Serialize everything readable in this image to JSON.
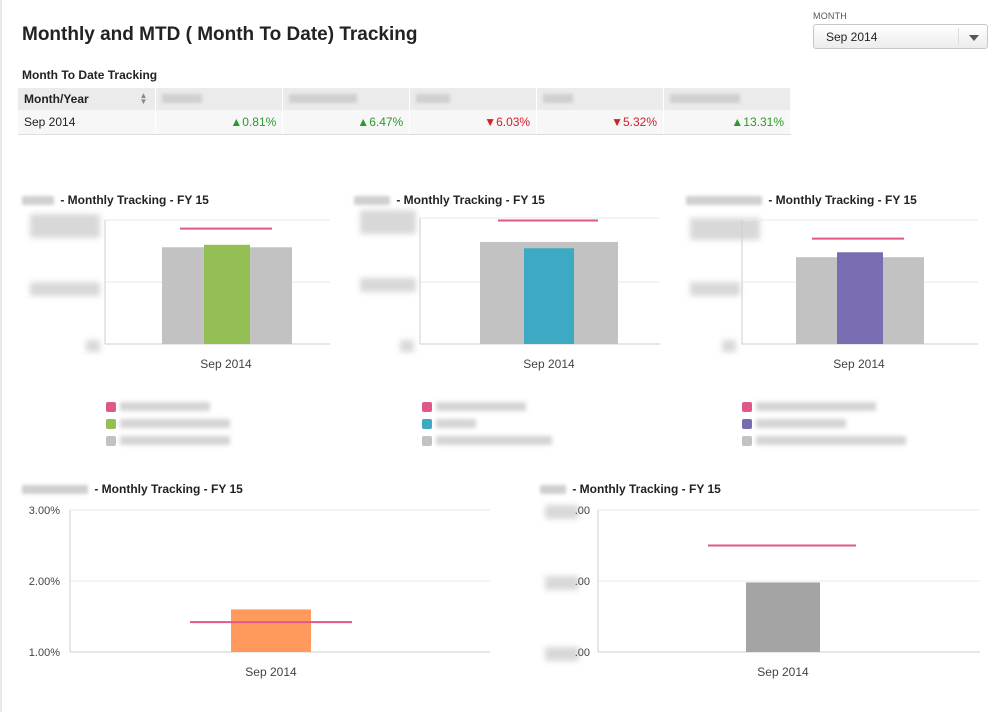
{
  "header": {
    "title": "Monthly and MTD ( Month To Date) Tracking",
    "month_label": "MONTH",
    "month_value": "Sep 2014"
  },
  "mtd": {
    "heading": "Month To Date Tracking",
    "columns": [
      "Month/Year",
      "",
      "",
      "",
      "",
      ""
    ],
    "row": {
      "month": "Sep 2014",
      "values": [
        {
          "text": "0.81%",
          "dir": "up"
        },
        {
          "text": "6.47%",
          "dir": "up"
        },
        {
          "text": "6.03%",
          "dir": "down"
        },
        {
          "text": "5.32%",
          "dir": "down"
        },
        {
          "text": "13.31%",
          "dir": "up"
        }
      ]
    }
  },
  "colors": {
    "target": "#e0578a",
    "gray": "#c2c2c2",
    "green": "#93bf55",
    "teal": "#3ea9c2",
    "purple": "#7a6cb1",
    "orange": "#ff9a5c",
    "darkgray": "#a4a4a4"
  },
  "chart_data": [
    {
      "type": "bar",
      "title": " - Monthly Tracking - FY 15",
      "categories": [
        "Sep 2014"
      ],
      "series": [
        {
          "values": [
            0.78
          ],
          "color": "#c2c2c2"
        },
        {
          "values": [
            0.8
          ],
          "color": "#93bf55"
        },
        {
          "values": [
            0.93
          ],
          "color": "#e0578a"
        }
      ],
      "ylim": [
        0,
        1
      ]
    },
    {
      "type": "bar",
      "title": " - Monthly Tracking - FY 15",
      "categories": [
        "Sep 2014"
      ],
      "series": [
        {
          "values": [
            0.81
          ],
          "color": "#c2c2c2"
        },
        {
          "values": [
            0.76
          ],
          "color": "#3ea9c2"
        },
        {
          "values": [
            0.98
          ],
          "color": "#e0578a"
        }
      ],
      "ylim": [
        0,
        1
      ]
    },
    {
      "type": "bar",
      "title": " - Monthly Tracking - FY 15",
      "categories": [
        "Sep 2014"
      ],
      "series": [
        {
          "values": [
            0.7
          ],
          "color": "#c2c2c2"
        },
        {
          "values": [
            0.74
          ],
          "color": "#7a6cb1"
        },
        {
          "values": [
            0.85
          ],
          "color": "#e0578a"
        }
      ],
      "ylim": [
        0,
        1
      ]
    },
    {
      "type": "bar",
      "title": " - Monthly Tracking - FY 15",
      "categories": [
        "Sep 2014"
      ],
      "yticks": [
        "3.00%",
        "2.00%",
        "1.00%"
      ],
      "ylim": [
        1,
        3
      ],
      "series": [
        {
          "values": [
            1.6
          ],
          "color": "#ff9a5c"
        },
        {
          "values": [
            1.42
          ],
          "color": "#e0578a"
        }
      ]
    },
    {
      "type": "bar",
      "title": " - Monthly Tracking - FY 15",
      "categories": [
        "Sep 2014"
      ],
      "yticks": [
        ".00",
        ".00",
        ".00"
      ],
      "series": [
        {
          "values": [
            0.98
          ],
          "color": "#a4a4a4"
        },
        {
          "values": [
            1.5
          ],
          "color": "#e0578a"
        }
      ],
      "ylim": [
        0,
        2
      ]
    }
  ]
}
